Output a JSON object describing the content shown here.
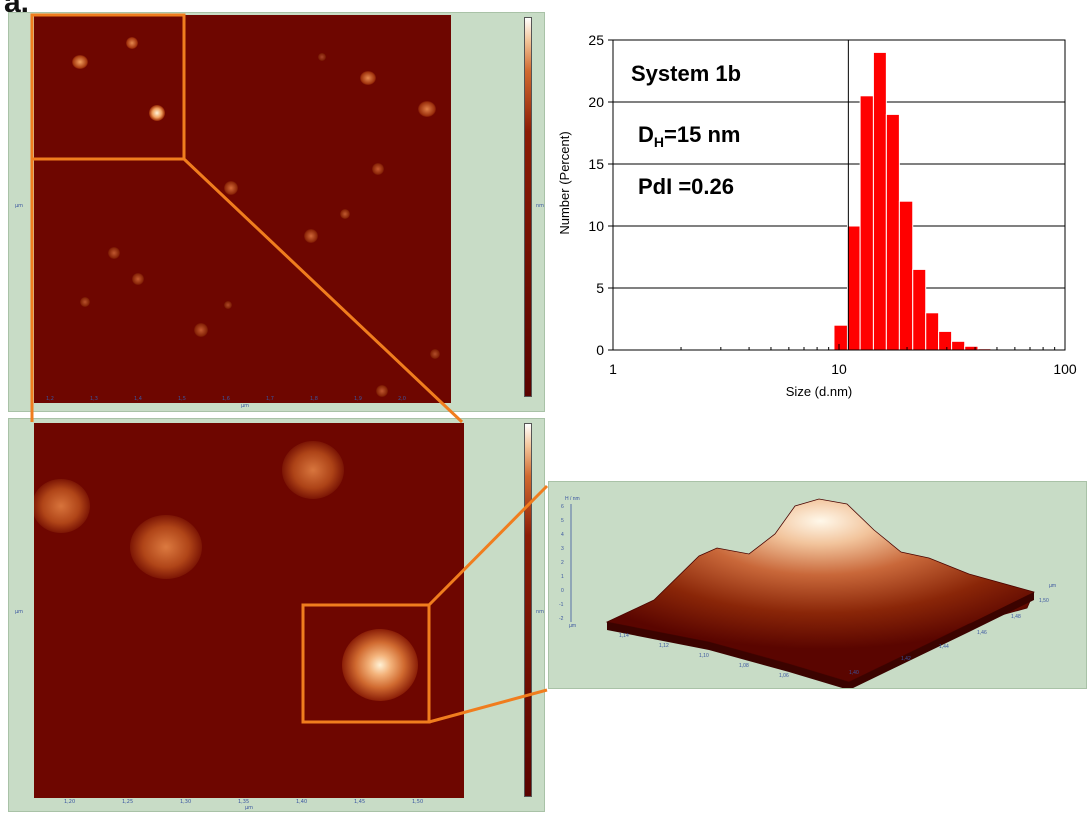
{
  "panel_label": "a.",
  "chart_data": {
    "type": "bar",
    "xscale": "log",
    "xlim": [
      1,
      100
    ],
    "ylim": [
      0,
      25
    ],
    "xticks": [
      1,
      10,
      100
    ],
    "xtick_labels": [
      "1",
      "10",
      "100"
    ],
    "yticks": [
      0,
      5,
      10,
      15,
      20,
      25
    ],
    "ytick_labels": [
      "0",
      "5",
      "10",
      "15",
      "20",
      "25"
    ],
    "xlabel": "Size (d.nm)",
    "ylabel": "Number (Percent)",
    "grid": true,
    "bar_color": "#ff0000",
    "reference_line_x": 11,
    "bins": [
      {
        "x0": 9.5,
        "x1": 10.9,
        "value": 2
      },
      {
        "x0": 10.9,
        "x1": 12.4,
        "value": 10
      },
      {
        "x0": 12.4,
        "x1": 14.2,
        "value": 20.5
      },
      {
        "x0": 14.2,
        "x1": 16.2,
        "value": 24
      },
      {
        "x0": 16.2,
        "x1": 18.5,
        "value": 19
      },
      {
        "x0": 18.5,
        "x1": 21.2,
        "value": 12
      },
      {
        "x0": 21.2,
        "x1": 24.2,
        "value": 6.5
      },
      {
        "x0": 24.2,
        "x1": 27.6,
        "value": 3
      },
      {
        "x0": 27.6,
        "x1": 31.5,
        "value": 1.5
      },
      {
        "x0": 31.5,
        "x1": 36,
        "value": 0.7
      },
      {
        "x0": 36,
        "x1": 41.2,
        "value": 0.3
      },
      {
        "x0": 41.2,
        "x1": 47,
        "value": 0.1
      }
    ],
    "annotations": {
      "system": "System 1b",
      "dh_main": "D",
      "dh_sub": "H",
      "dh_value": "=15 nm",
      "pdi": "PdI =0.26"
    }
  },
  "afm_top": {
    "x_ticks": [
      "1,2",
      "1,3",
      "1,4",
      "1,5",
      "1,6",
      "1,7",
      "1,8",
      "1,9",
      "2,0"
    ],
    "x_unit": "µm",
    "y_unit": "µm",
    "z_unit": "nm"
  },
  "afm_bottom": {
    "x_ticks": [
      "1,20",
      "1,25",
      "1,30",
      "1,35",
      "1,40",
      "1,45",
      "1,50"
    ],
    "x_unit": "µm",
    "y_unit": "µm",
    "z_unit": "nm"
  },
  "afm_3d": {
    "z_label": "H / nm",
    "z_ticks": [
      "6",
      "5",
      "4",
      "3",
      "2",
      "1",
      "0",
      "-1",
      "-2"
    ],
    "front_ticks": [
      "1,14",
      "1,12",
      "1,10",
      "1,08",
      "1,06"
    ],
    "right_ticks": [
      "1,40",
      "1,42",
      "1,44",
      "1,46",
      "1,48",
      "1,50"
    ],
    "axis_unit": "µm"
  },
  "colors": {
    "afm_background": "#6e0600",
    "frame_green": "#c8dcc6",
    "zoom_orange": "#f07d1e",
    "bar_red": "#ff0000"
  }
}
